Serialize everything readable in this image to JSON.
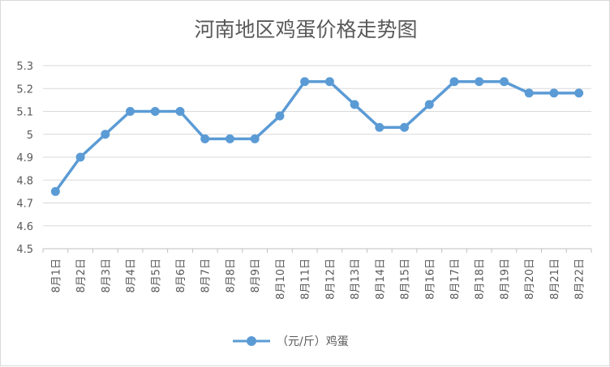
{
  "chart_data": {
    "type": "line",
    "title": "河南地区鸡蛋价格走势图",
    "categories": [
      "8月1日",
      "8月2日",
      "8月3日",
      "8月4日",
      "8月5日",
      "8月6日",
      "8月7日",
      "8月8日",
      "8月9日",
      "8月10日",
      "8月11日",
      "8月12日",
      "8月13日",
      "8月14日",
      "8月15日",
      "8月16日",
      "8月17日",
      "8月18日",
      "8月19日",
      "8月20日",
      "8月21日",
      "8月22日"
    ],
    "series": [
      {
        "name": "（元/斤）鸡蛋",
        "values": [
          4.75,
          4.9,
          5.0,
          5.1,
          5.1,
          5.1,
          4.98,
          4.98,
          4.98,
          5.08,
          5.23,
          5.23,
          5.13,
          5.03,
          5.03,
          5.13,
          5.23,
          5.23,
          5.23,
          5.18,
          5.18,
          5.18
        ]
      }
    ],
    "yticks": [
      "4.5",
      "4.6",
      "4.7",
      "4.8",
      "4.9",
      "5",
      "5.1",
      "5.2",
      "5.3"
    ],
    "ylim": [
      4.5,
      5.3
    ],
    "grid": true,
    "legend": "bottom",
    "colors": {
      "series": "#5b9bd5",
      "grid": "#d9d9d9",
      "text": "#595959"
    }
  }
}
